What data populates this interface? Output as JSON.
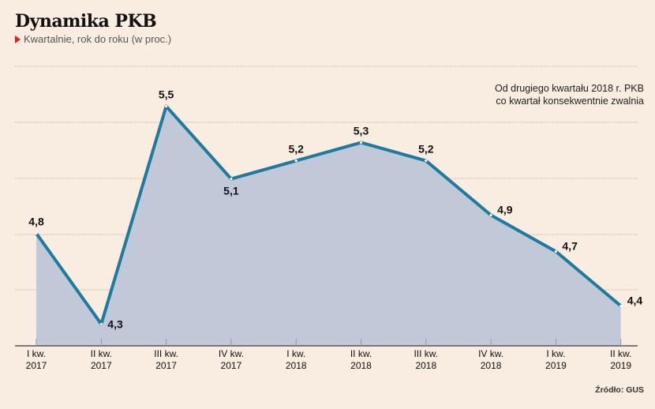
{
  "header": {
    "title": "Dynamika PKB",
    "subtitle": "Kwartalnie, rok do roku (w proc.)"
  },
  "annotation_lines": [
    "Od drugiego kwartału 2018 r. PKB",
    "co kwartał konsekwentnie zwalnia"
  ],
  "source": "Źródło: GUS",
  "colors": {
    "background": "#f9ece0",
    "line": "#1f7a9e",
    "area": "#c1c9d9",
    "grid": "#c8bfb6",
    "accent": "#e0201b"
  },
  "chart_data": {
    "type": "area",
    "title": "Dynamika PKB",
    "subtitle": "Kwartalnie, rok do roku (w proc.)",
    "xlabel": "",
    "ylabel": "",
    "categories": [
      [
        "I kw.",
        "2017"
      ],
      [
        "II kw.",
        "2017"
      ],
      [
        "III kw.",
        "2017"
      ],
      [
        "IV kw.",
        "2017"
      ],
      [
        "I kw.",
        "2018"
      ],
      [
        "II kw.",
        "2018"
      ],
      [
        "III kw.",
        "2018"
      ],
      [
        "IV kw.",
        "2018"
      ],
      [
        "I kw.",
        "2019"
      ],
      [
        "II kw.",
        "2019"
      ]
    ],
    "values": [
      4.8,
      4.3,
      5.5,
      5.1,
      5.2,
      5.3,
      5.2,
      4.9,
      4.7,
      4.4
    ],
    "value_labels": [
      "4,8",
      "4,3",
      "5,5",
      "5,1",
      "5,2",
      "5,3",
      "5,2",
      "4,9",
      "4,7",
      "4,4"
    ],
    "label_positions": [
      "above",
      "right",
      "above",
      "below",
      "above",
      "above",
      "above",
      "right",
      "right",
      "right"
    ],
    "ylim": [
      4.18,
      5.72
    ],
    "grid": true,
    "legend": "none"
  }
}
